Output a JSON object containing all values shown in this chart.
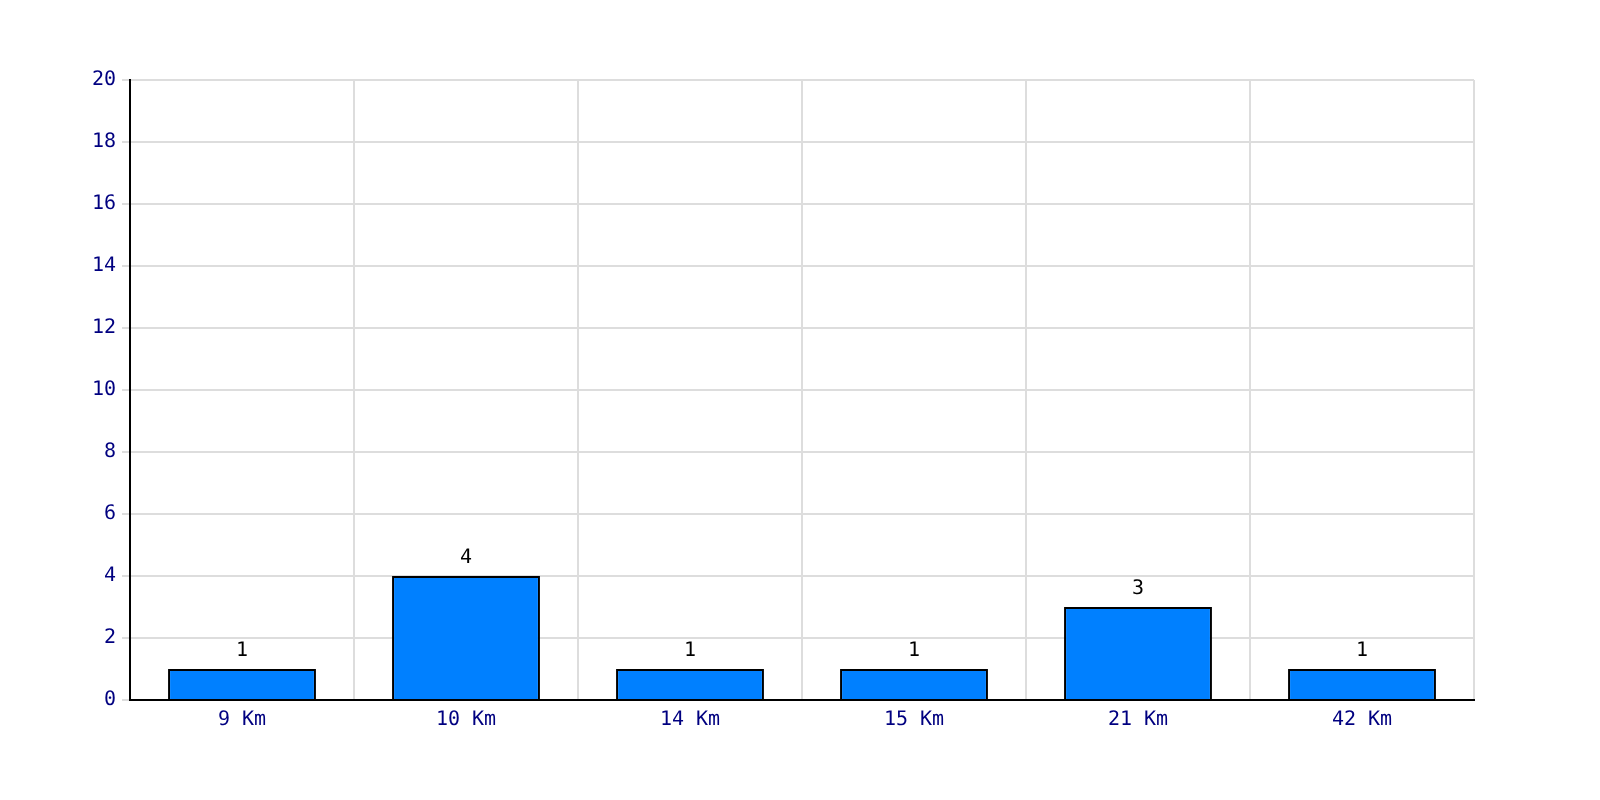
{
  "chart_data": {
    "type": "bar",
    "categories": [
      "9 Km",
      "10 Km",
      "14 Km",
      "15 Km",
      "21 Km",
      "42 Km"
    ],
    "values": [
      1,
      4,
      1,
      1,
      3,
      1
    ],
    "color": "#0080ff",
    "ylim": [
      0,
      20
    ],
    "yticks": [
      0,
      2,
      4,
      6,
      8,
      10,
      12,
      14,
      16,
      18,
      20
    ],
    "grid": true,
    "data_labels": true
  }
}
